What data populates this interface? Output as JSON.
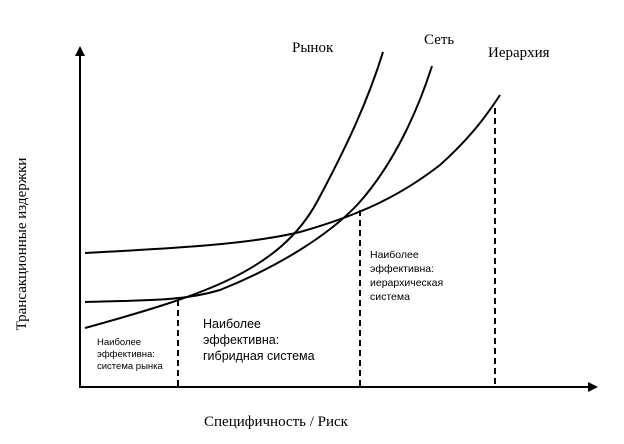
{
  "axes": {
    "x_label": "Специфичность / Риск",
    "y_label": "Трансакционные издержки"
  },
  "curves": [
    {
      "id": "market",
      "label": "Рынок"
    },
    {
      "id": "network",
      "label": "Сеть"
    },
    {
      "id": "hierarchy",
      "label": "Иерархия"
    }
  ],
  "regions": {
    "market": [
      "Наиболее",
      "эффективна:",
      "система рынка"
    ],
    "hybrid": [
      "Наиболее",
      "эффективна:",
      "гибридная система"
    ],
    "hierarchy": [
      "Наиболее",
      "эффективна:",
      "иерархическая",
      "система"
    ]
  }
}
